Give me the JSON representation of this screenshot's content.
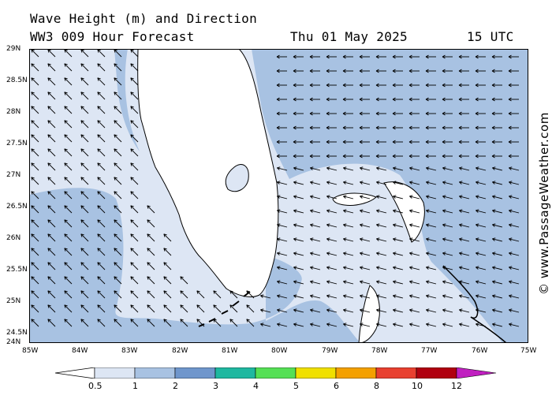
{
  "header": {
    "line1": "Wave Height (m) and Direction",
    "line2_left": "WW3 009 Hour Forecast",
    "date": "Thu 01 May 2025",
    "time": "15 UTC"
  },
  "axes": {
    "lat_labels": [
      "29N",
      "28.5N",
      "28N",
      "27.5N",
      "27N",
      "26.5N",
      "26N",
      "25.5N",
      "25N",
      "24.5N",
      "24N"
    ],
    "lon_labels": [
      "85W",
      "84W",
      "83W",
      "82W",
      "81W",
      "80W",
      "79W",
      "78W",
      "77W",
      "76W",
      "75W"
    ]
  },
  "legend": {
    "ticks": [
      "0.5",
      "1",
      "2",
      "3",
      "4",
      "5",
      "6",
      "8",
      "10",
      "12"
    ],
    "colors": [
      "#dde6f4",
      "#a8c2e2",
      "#6f96cc",
      "#1fb8a0",
      "#55e055",
      "#f0e000",
      "#f4a000",
      "#e84030",
      "#b00010",
      "#c020c0"
    ]
  },
  "watermark": "© www.PassageWeather.com",
  "colors": {
    "band_low": "#dde6f4",
    "band_mid": "#a8c2e2",
    "land": "#ffffff"
  },
  "map": {
    "extent": {
      "lon": [
        -85,
        -75
      ],
      "lat": [
        24,
        29
      ]
    },
    "field_arrow_direction": "west / north-west"
  }
}
